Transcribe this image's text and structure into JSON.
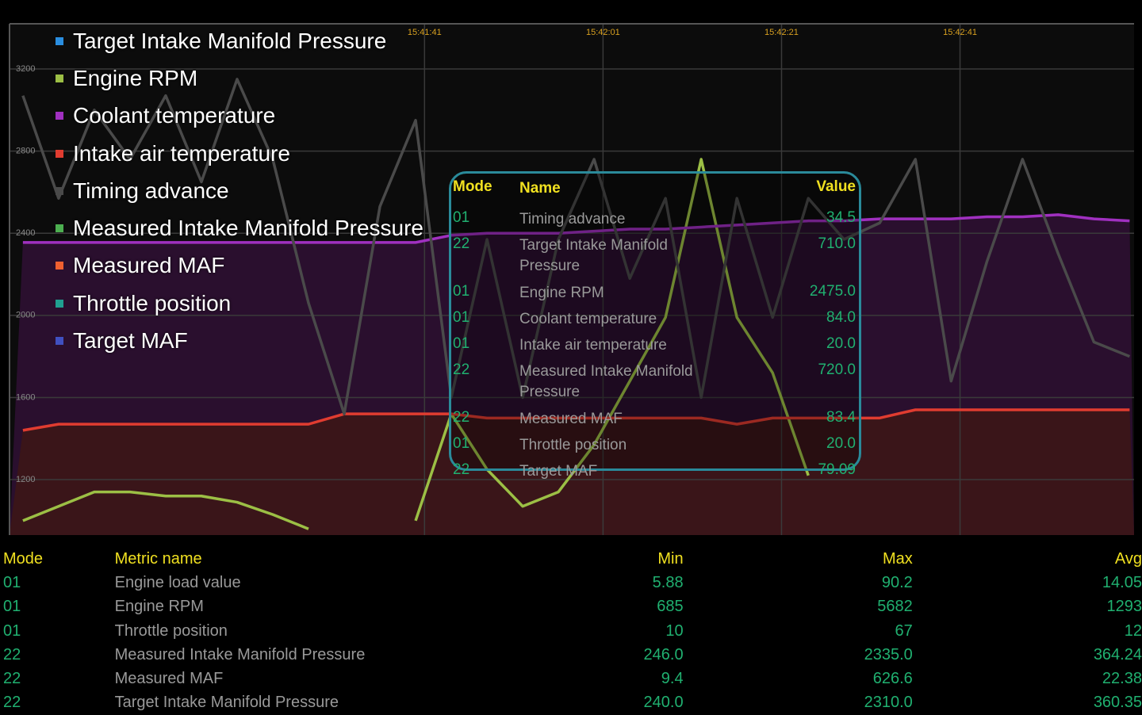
{
  "chart_data": {
    "type": "line",
    "x": [
      56456,
      56460,
      56464,
      56468,
      56472,
      56476,
      56480,
      56484,
      56488,
      56492,
      56496,
      56500,
      56504,
      56508,
      56512,
      56516,
      56520,
      56524,
      56528,
      56532,
      56536,
      56540,
      56544,
      56548,
      56552,
      56556,
      56560,
      56564,
      56568,
      56572,
      56576,
      56580
    ],
    "xlim": [
      56454.5,
      56580.5
    ],
    "xticks": [
      {
        "value": 56501,
        "label": "15:41:41"
      },
      {
        "value": 56521,
        "label": "15:42:01"
      },
      {
        "value": 56541,
        "label": "15:42:21"
      },
      {
        "value": 56561,
        "label": "15:42:41"
      }
    ],
    "ylim": [
      930,
      3420
    ],
    "yticks": [
      1200,
      1600,
      2000,
      2400,
      2800,
      3200
    ],
    "grid": true,
    "series": [
      {
        "name": "Target Intake Manifold Pressure",
        "color": "#2a8ee0",
        "values": [
          null,
          null,
          null,
          null,
          null,
          null,
          null,
          null,
          null,
          null,
          null,
          null,
          null,
          null,
          null,
          null,
          null,
          null,
          null,
          null,
          null,
          null,
          null,
          null,
          null,
          null,
          null,
          null,
          null,
          null,
          null,
          null
        ]
      },
      {
        "name": "Engine RPM",
        "color": "#9cbf45",
        "values": [
          1000,
          1070,
          1140,
          1140,
          1120,
          1120,
          1090,
          1030,
          960,
          null,
          null,
          1000,
          1520,
          1250,
          1070,
          1140,
          1370,
          1680,
          1990,
          2760,
          1990,
          1720,
          1220,
          null,
          null,
          null,
          null,
          null,
          null,
          null,
          null,
          null
        ]
      },
      {
        "name": "Coolant temperature",
        "color": "#a030c0",
        "fill": "#2a0f2e",
        "values": [
          2355,
          2355,
          2355,
          2355,
          2355,
          2355,
          2355,
          2355,
          2355,
          2355,
          2355,
          2355,
          2390,
          2400,
          2400,
          2400,
          2410,
          2420,
          2420,
          2430,
          2440,
          2450,
          2460,
          2460,
          2470,
          2470,
          2470,
          2480,
          2480,
          2490,
          2470,
          2460
        ]
      },
      {
        "name": "Intake air temperature",
        "color": "#e03c30",
        "fill": "#3a1519",
        "values": [
          1440,
          1470,
          1470,
          1470,
          1470,
          1470,
          1470,
          1470,
          1470,
          1520,
          1520,
          1520,
          1520,
          1500,
          1500,
          1500,
          1500,
          1500,
          1500,
          1500,
          1470,
          1500,
          1500,
          1500,
          1500,
          1540,
          1540,
          1540,
          1540,
          1540,
          1540,
          1540
        ]
      },
      {
        "name": "Timing advance",
        "color": "#4a4a4a",
        "values": [
          3070,
          2570,
          3000,
          2760,
          3070,
          2650,
          3150,
          2760,
          2060,
          1520,
          2530,
          2950,
          1600,
          2370,
          1600,
          2370,
          2760,
          2180,
          2570,
          1600,
          2570,
          1990,
          2570,
          2370,
          2450,
          2760,
          1680,
          2260,
          2760,
          2300,
          1870,
          1800
        ]
      },
      {
        "name": "Measured Intake Manifold Pressure",
        "color": "#4caf50",
        "values": [
          null,
          null,
          null,
          null,
          null,
          null,
          null,
          null,
          null,
          null,
          null,
          null,
          null,
          null,
          null,
          null,
          null,
          null,
          null,
          null,
          null,
          null,
          null,
          null,
          null,
          null,
          null,
          null,
          null,
          null,
          null,
          null
        ]
      },
      {
        "name": "Measured MAF",
        "color": "#f06030",
        "values": [
          null,
          null,
          null,
          null,
          null,
          null,
          null,
          null,
          null,
          null,
          null,
          null,
          null,
          null,
          null,
          null,
          null,
          null,
          null,
          null,
          null,
          null,
          null,
          null,
          null,
          null,
          null,
          null,
          null,
          null,
          null,
          null
        ]
      },
      {
        "name": "Throttle position",
        "color": "#20a090",
        "values": [
          null,
          null,
          null,
          null,
          null,
          null,
          null,
          null,
          null,
          null,
          null,
          null,
          null,
          null,
          null,
          null,
          null,
          null,
          null,
          null,
          null,
          null,
          null,
          null,
          null,
          null,
          null,
          null,
          null,
          null,
          null,
          null
        ]
      },
      {
        "name": "Target MAF",
        "color": "#4050c0",
        "values": [
          null,
          null,
          null,
          null,
          null,
          null,
          null,
          null,
          null,
          null,
          null,
          null,
          null,
          null,
          null,
          null,
          null,
          null,
          null,
          null,
          null,
          null,
          null,
          null,
          null,
          null,
          null,
          null,
          null,
          null,
          null,
          null
        ]
      }
    ]
  },
  "popup": {
    "header": [
      "Mode",
      "Name",
      "Value"
    ],
    "rows": [
      [
        "01",
        "Timing advance",
        "34.5"
      ],
      [
        "22",
        "Target Intake Manifold Pressure",
        "710.0"
      ],
      [
        "01",
        "Engine RPM",
        "2475.0"
      ],
      [
        "01",
        "Coolant temperature",
        "84.0"
      ],
      [
        "01",
        "Intake air temperature",
        "20.0"
      ],
      [
        "22",
        "Measured Intake Manifold Pressure",
        "720.0"
      ],
      [
        "22",
        "Measured MAF",
        "83.4"
      ],
      [
        "01",
        "Throttle position",
        "20.0"
      ],
      [
        "22",
        "Target MAF",
        "79.09"
      ]
    ]
  },
  "table": {
    "header": [
      "Mode",
      "Metric name",
      "Min",
      "Max",
      "Avg"
    ],
    "rows": [
      [
        "01",
        "Engine load value",
        "5.88",
        "90.2",
        "14.05"
      ],
      [
        "01",
        "Engine RPM",
        "685",
        "5682",
        "1293"
      ],
      [
        "01",
        "Throttle position",
        "10",
        "67",
        "12"
      ],
      [
        "22",
        "Measured Intake Manifold Pressure",
        "246.0",
        "2335.0",
        "364.24"
      ],
      [
        "22",
        "Measured MAF",
        "9.4",
        "626.6",
        "22.38"
      ],
      [
        "22",
        "Target Intake Manifold Pressure",
        "240.0",
        "2310.0",
        "360.35"
      ]
    ]
  }
}
